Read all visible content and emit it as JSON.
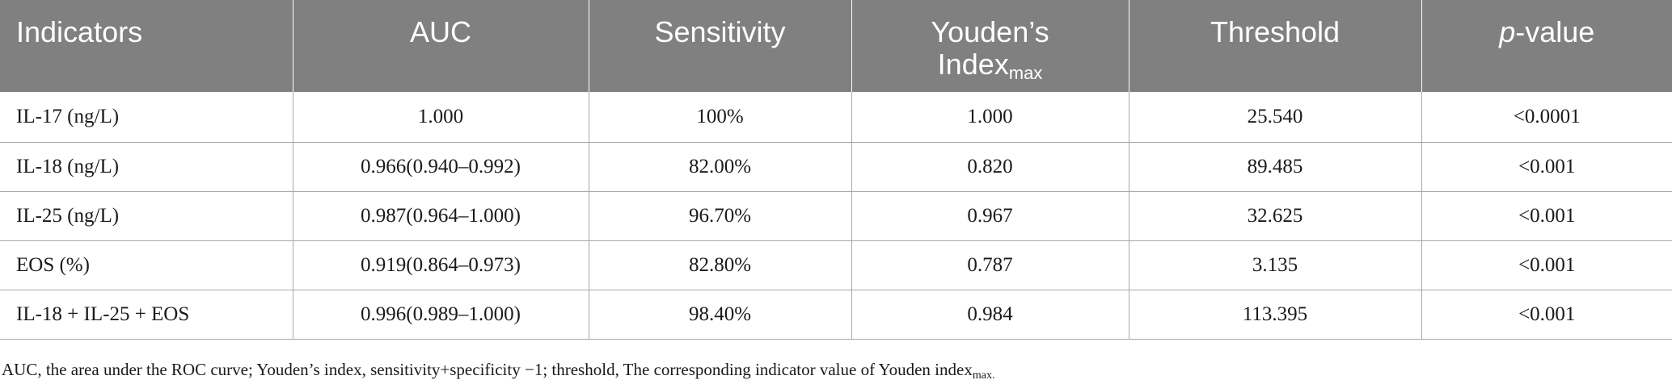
{
  "table": {
    "headers": {
      "indicators": "Indicators",
      "auc": "AUC",
      "sensitivity": "Sensitivity",
      "youden_main_line1": "Youden’s",
      "youden_main_line2": "Index",
      "youden_sub": "max",
      "threshold": "Threshold",
      "pvalue_italic": "p",
      "pvalue_rest": "-value"
    },
    "rows": [
      {
        "indicator": "IL-17 (ng/L)",
        "auc": "1.000",
        "sensitivity": "100%",
        "youden": "1.000",
        "threshold": "25.540",
        "pvalue": "<0.0001"
      },
      {
        "indicator": "IL-18 (ng/L)",
        "auc": "0.966(0.940–0.992)",
        "sensitivity": "82.00%",
        "youden": "0.820",
        "threshold": "89.485",
        "pvalue": "<0.001"
      },
      {
        "indicator": "IL-25 (ng/L)",
        "auc": "0.987(0.964–1.000)",
        "sensitivity": "96.70%",
        "youden": "0.967",
        "threshold": "32.625",
        "pvalue": "<0.001"
      },
      {
        "indicator": "EOS (%)",
        "auc": "0.919(0.864–0.973)",
        "sensitivity": "82.80%",
        "youden": "0.787",
        "threshold": "3.135",
        "pvalue": "<0.001"
      },
      {
        "indicator": "IL-18 + IL-25 + EOS",
        "auc": "0.996(0.989–1.000)",
        "sensitivity": "98.40%",
        "youden": "0.984",
        "threshold": "113.395",
        "pvalue": "<0.001"
      }
    ]
  },
  "footnote": {
    "text": "AUC, the area under the ROC curve; Youden’s index, sensitivity+specificity −1; threshold, The corresponding indicator value of Youden index",
    "sub": "max."
  }
}
